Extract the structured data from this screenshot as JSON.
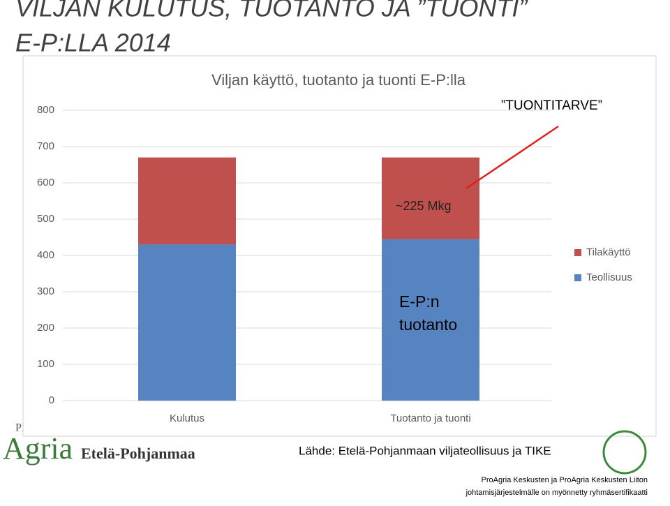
{
  "slide": {
    "title_lines": [
      "VILJAN KULUTUS, TUOTANTO JA ”TUONTI”",
      "E-P:LLA 2014"
    ],
    "source": "Lähde: Etelä-Pohjanmaan viljateollisuus ja TIKE",
    "logo": {
      "pro": "PRO",
      "name": "Agria",
      "region": "Etelä-Pohjanmaa"
    },
    "certificate_lines": [
      "ProAgria Keskusten ja ProAgria Keskusten Liiton",
      "johtamisjärjestelmälle on myönnetty ryhmäsertifikaatti"
    ]
  },
  "chart_data": {
    "type": "stacked_bar",
    "title": "Viljan käyttö, tuotanto ja tuonti E-P:lla",
    "categories": [
      "Kulutus",
      "Tuotanto ja tuonti"
    ],
    "series": [
      {
        "name": "Teollisuus",
        "color": "#5584c1",
        "values": [
          430,
          445
        ]
      },
      {
        "name": "Tilakäyttö",
        "color": "#c0504d",
        "values": [
          240,
          225
        ]
      }
    ],
    "ylim": [
      0,
      800
    ],
    "yticks": [
      0,
      100,
      200,
      300,
      400,
      500,
      600,
      700,
      800
    ],
    "grid": true,
    "legend": "right",
    "annotations": [
      "”TUONTITARVE”",
      "~225 Mkg",
      "E-P:n",
      "tuotanto"
    ]
  }
}
